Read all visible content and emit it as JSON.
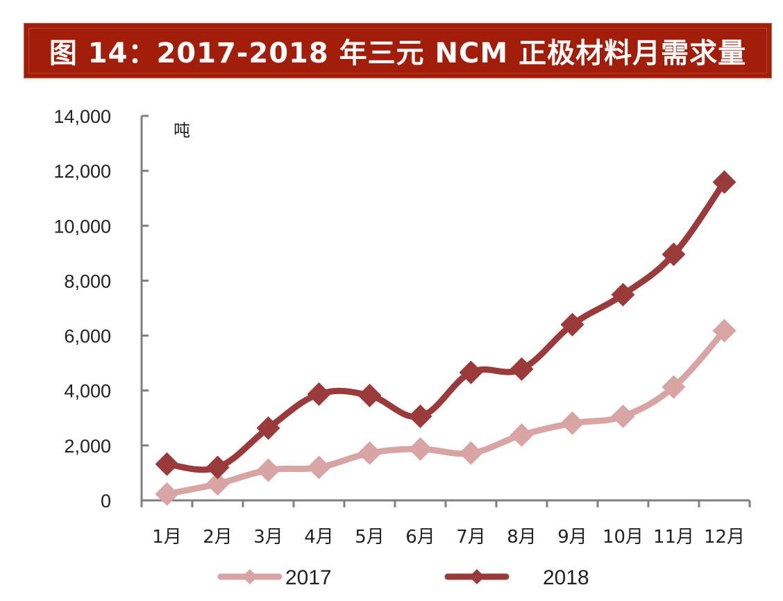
{
  "title": "图 14：2017-2018 年三元 NCM 正极材料月需求量",
  "colors": {
    "banner": "#a31d0b",
    "axis": "#7f7f7f",
    "series_2017": "#d8a4a4",
    "series_2018": "#9b3a3a"
  },
  "chart_data": {
    "type": "line",
    "title": "2017-2018 年三元 NCM 正极材料月需求量",
    "xlabel": "",
    "ylabel": "吨",
    "unit_label": "吨",
    "categories": [
      "1月",
      "2月",
      "3月",
      "4月",
      "5月",
      "6月",
      "7月",
      "8月",
      "9月",
      "10月",
      "11月",
      "12月"
    ],
    "series": [
      {
        "name": "2017",
        "color": "#d8a4a4",
        "marker": "diamond",
        "values": [
          230,
          600,
          1100,
          1200,
          1720,
          1870,
          1720,
          2380,
          2810,
          3060,
          4130,
          6180
        ]
      },
      {
        "name": "2018",
        "color": "#9b3a3a",
        "marker": "diamond",
        "values": [
          1320,
          1200,
          2630,
          3870,
          3820,
          3060,
          4660,
          4780,
          6400,
          7490,
          8960,
          11590
        ]
      }
    ],
    "ylim": [
      0,
      14000
    ],
    "yticks": [
      0,
      2000,
      4000,
      6000,
      8000,
      10000,
      12000,
      14000
    ],
    "ytick_labels": [
      "0",
      "2,000",
      "4,000",
      "6,000",
      "8,000",
      "10,000",
      "12,000",
      "14,000"
    ],
    "grid": false,
    "legend_position": "bottom"
  }
}
